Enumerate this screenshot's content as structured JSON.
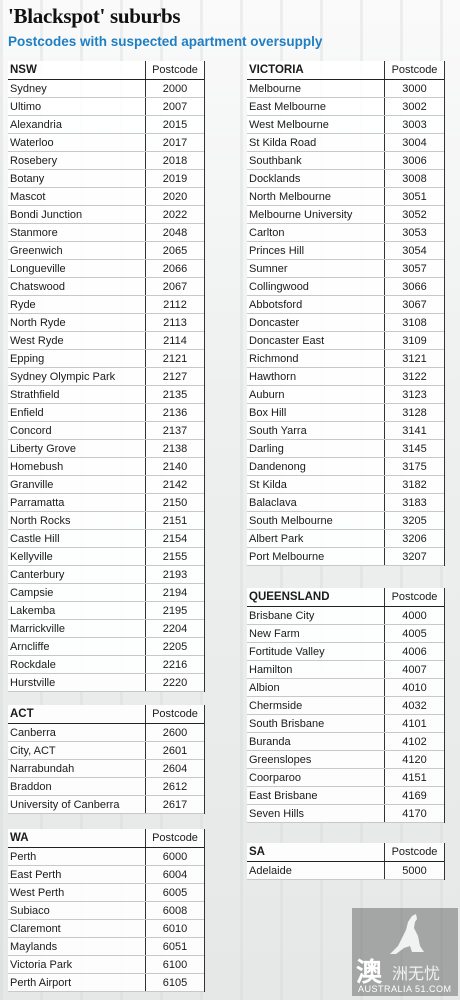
{
  "header": {
    "title": "'Blackspot' suburbs",
    "subtitle": "Postcodes with suspected apartment oversupply"
  },
  "postcode_label": "Postcode",
  "tables": {
    "nsw": {
      "heading": "NSW",
      "rows": [
        [
          "Sydney",
          "2000"
        ],
        [
          "Ultimo",
          "2007"
        ],
        [
          "Alexandria",
          "2015"
        ],
        [
          "Waterloo",
          "2017"
        ],
        [
          "Rosebery",
          "2018"
        ],
        [
          "Botany",
          "2019"
        ],
        [
          "Mascot",
          "2020"
        ],
        [
          "Bondi Junction",
          "2022"
        ],
        [
          "Stanmore",
          "2048"
        ],
        [
          "Greenwich",
          "2065"
        ],
        [
          "Longueville",
          "2066"
        ],
        [
          "Chatswood",
          "2067"
        ],
        [
          "Ryde",
          "2112"
        ],
        [
          "North Ryde",
          "2113"
        ],
        [
          "West Ryde",
          "2114"
        ],
        [
          "Epping",
          "2121"
        ],
        [
          "Sydney Olympic Park",
          "2127"
        ],
        [
          "Strathfield",
          "2135"
        ],
        [
          "Enfield",
          "2136"
        ],
        [
          "Concord",
          "2137"
        ],
        [
          "Liberty Grove",
          "2138"
        ],
        [
          "Homebush",
          "2140"
        ],
        [
          "Granville",
          "2142"
        ],
        [
          "Parramatta",
          "2150"
        ],
        [
          "North Rocks",
          "2151"
        ],
        [
          "Castle Hill",
          "2154"
        ],
        [
          "Kellyville",
          "2155"
        ],
        [
          "Canterbury",
          "2193"
        ],
        [
          "Campsie",
          "2194"
        ],
        [
          "Lakemba",
          "2195"
        ],
        [
          "Marrickville",
          "2204"
        ],
        [
          "Arncliffe",
          "2205"
        ],
        [
          "Rockdale",
          "2216"
        ],
        [
          "Hurstville",
          "2220"
        ]
      ]
    },
    "act": {
      "heading": "ACT",
      "rows": [
        [
          "Canberra",
          "2600"
        ],
        [
          "City, ACT",
          "2601"
        ],
        [
          "Narrabundah",
          "2604"
        ],
        [
          "Braddon",
          "2612"
        ],
        [
          "University of Canberra",
          "2617"
        ]
      ]
    },
    "wa": {
      "heading": "WA",
      "rows": [
        [
          "Perth",
          "6000"
        ],
        [
          "East Perth",
          "6004"
        ],
        [
          "West Perth",
          "6005"
        ],
        [
          "Subiaco",
          "6008"
        ],
        [
          "Claremont",
          "6010"
        ],
        [
          "Maylands",
          "6051"
        ],
        [
          "Victoria Park",
          "6100"
        ],
        [
          "Perth Airport",
          "6105"
        ]
      ]
    },
    "victoria": {
      "heading": "VICTORIA",
      "rows": [
        [
          "Melbourne",
          "3000"
        ],
        [
          "East Melbourne",
          "3002"
        ],
        [
          "West Melbourne",
          "3003"
        ],
        [
          "St Kilda Road",
          "3004"
        ],
        [
          "Southbank",
          "3006"
        ],
        [
          "Docklands",
          "3008"
        ],
        [
          "North Melbourne",
          "3051"
        ],
        [
          "Melbourne University",
          "3052"
        ],
        [
          "Carlton",
          "3053"
        ],
        [
          "Princes Hill",
          "3054"
        ],
        [
          "Sumner",
          "3057"
        ],
        [
          "Collingwood",
          "3066"
        ],
        [
          "Abbotsford",
          "3067"
        ],
        [
          "Doncaster",
          "3108"
        ],
        [
          "Doncaster East",
          "3109"
        ],
        [
          "Richmond",
          "3121"
        ],
        [
          "Hawthorn",
          "3122"
        ],
        [
          "Auburn",
          "3123"
        ],
        [
          "Box Hill",
          "3128"
        ],
        [
          "South Yarra",
          "3141"
        ],
        [
          "Darling",
          "3145"
        ],
        [
          "Dandenong",
          "3175"
        ],
        [
          "St Kilda",
          "3182"
        ],
        [
          "Balaclava",
          "3183"
        ],
        [
          "South Melbourne",
          "3205"
        ],
        [
          "Albert Park",
          "3206"
        ],
        [
          "Port Melbourne",
          "3207"
        ]
      ]
    },
    "queensland": {
      "heading": "QUEENSLAND",
      "rows": [
        [
          "Brisbane City",
          "4000"
        ],
        [
          "New Farm",
          "4005"
        ],
        [
          "Fortitude Valley",
          "4006"
        ],
        [
          "Hamilton",
          "4007"
        ],
        [
          "Albion",
          "4010"
        ],
        [
          "Chermside",
          "4032"
        ],
        [
          "South Brisbane",
          "4101"
        ],
        [
          "Buranda",
          "4102"
        ],
        [
          "Greenslopes",
          "4120"
        ],
        [
          "Coorparoo",
          "4151"
        ],
        [
          "East Brisbane",
          "4169"
        ],
        [
          "Seven Hills",
          "4170"
        ]
      ]
    },
    "sa": {
      "heading": "SA",
      "rows": [
        [
          "Adelaide",
          "5000"
        ]
      ]
    }
  },
  "watermark": {
    "chinese_main": "澳",
    "chinese_rest": "洲无忧",
    "english": "AUSTRALIA 51.COM"
  }
}
